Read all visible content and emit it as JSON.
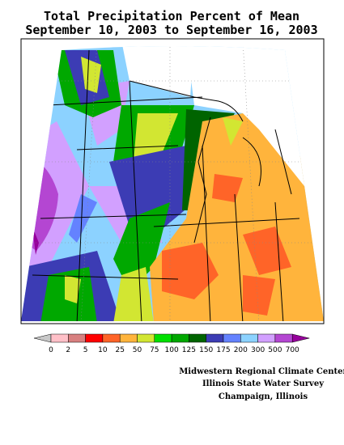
{
  "title": [
    "Total Precipitation Percent of Mean",
    "September 10, 2003 to September 16, 2003"
  ],
  "legend": {
    "labels": [
      "0",
      "2",
      "5",
      "10",
      "25",
      "50",
      "75",
      "100",
      "125",
      "150",
      "175",
      "200",
      "300",
      "500",
      "700"
    ],
    "below_color": "#c8c8c8",
    "colors": [
      "#ffc0c8",
      "#d88080",
      "#ff0000",
      "#ff6428",
      "#ffb43c",
      "#d2e632",
      "#00e000",
      "#00a800",
      "#006400",
      "#3c3cb4",
      "#6482ff",
      "#8cd2ff",
      "#d2a0ff",
      "#b446d2"
    ],
    "above_color": "#96009b"
  },
  "credits": [
    "Midwestern Regional Climate Center",
    "Illinois State Water Survey",
    "Champaign, Illinois"
  ]
}
